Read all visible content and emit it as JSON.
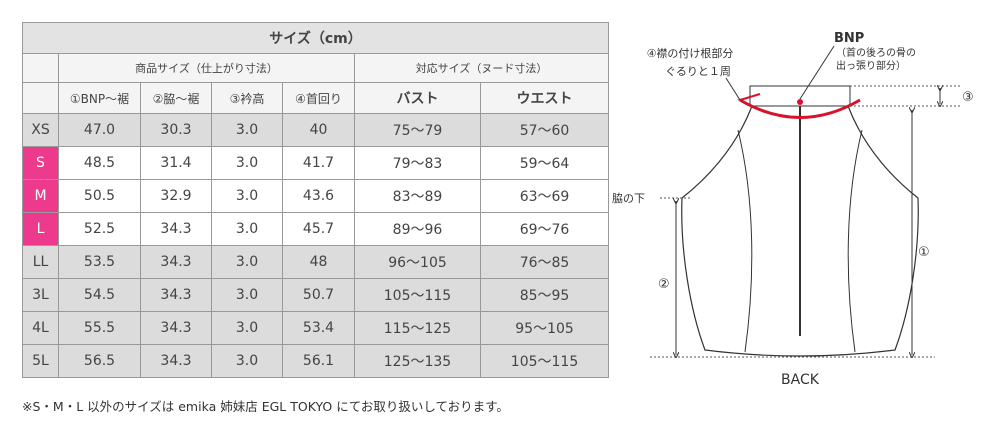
{
  "table": {
    "title": "サイズ（cm）",
    "groups": [
      "商品サイズ（仕上がり寸法）",
      "対応サイズ（ヌード寸法）"
    ],
    "columns": [
      "①BNP～裾",
      "②脇～裾",
      "③衿高",
      "④首回り",
      "バスト",
      "ウエスト"
    ],
    "rows": [
      [
        "XS",
        "47.0",
        "30.3",
        "3.0",
        "40",
        "75～79",
        "57～60"
      ],
      [
        "S",
        "48.5",
        "31.4",
        "3.0",
        "41.7",
        "79～83",
        "59～64"
      ],
      [
        "M",
        "50.5",
        "32.9",
        "3.0",
        "43.6",
        "83～89",
        "63～69"
      ],
      [
        "L",
        "52.5",
        "34.3",
        "3.0",
        "45.7",
        "89～96",
        "69～76"
      ],
      [
        "LL",
        "53.5",
        "34.3",
        "3.0",
        "48",
        "96～105",
        "76～85"
      ],
      [
        "3L",
        "54.5",
        "34.3",
        "3.0",
        "50.7",
        "105～115",
        "85～95"
      ],
      [
        "4L",
        "55.5",
        "34.3",
        "3.0",
        "53.4",
        "115～125",
        "95～105"
      ],
      [
        "5L",
        "56.5",
        "34.3",
        "3.0",
        "56.1",
        "125～135",
        "105～115"
      ]
    ]
  },
  "note": "※S・M・L 以外のサイズは emika 姉妹店 EGL TOKYO にてお取り扱いしております。",
  "diagram": {
    "collar_label": [
      "④襟の付け根部分",
      "ぐるりと１周"
    ],
    "bnp_title": "BNP",
    "bnp_note": [
      "（首の後ろの骨の",
      "出っ張り部分）"
    ],
    "collar_height": "③",
    "armpit": "脇の下",
    "length": "①",
    "side_length": "②",
    "view": "BACK"
  }
}
